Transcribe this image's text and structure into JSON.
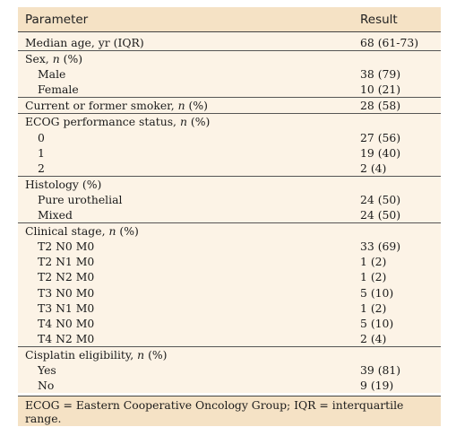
{
  "table": {
    "header": {
      "parameter": "Parameter",
      "result": "Result"
    },
    "rows": [
      {
        "label": "Median age, yr (IQR)",
        "value": "68 (61-73)"
      },
      {
        "label": "Sex, ",
        "label_italic": "n",
        "label_suffix": " (%)",
        "value": ""
      },
      {
        "label": "Male",
        "value": "38 (79)"
      },
      {
        "label": "Female",
        "value": "10 (21)"
      },
      {
        "label": "Current or former smoker, ",
        "label_italic": "n",
        "label_suffix": " (%)",
        "value": "28 (58)"
      },
      {
        "label": "ECOG performance status, ",
        "label_italic": "n",
        "label_suffix": " (%)",
        "value": ""
      },
      {
        "label": "0",
        "value": "27 (56)"
      },
      {
        "label": "1",
        "value": "19 (40)"
      },
      {
        "label": "2",
        "value": "2 (4)"
      },
      {
        "label": "Histology (%)",
        "value": ""
      },
      {
        "label": "Pure urothelial",
        "value": "24 (50)"
      },
      {
        "label": "Mixed",
        "value": "24 (50)"
      },
      {
        "label": "Clinical stage, ",
        "label_italic": "n",
        "label_suffix": " (%)",
        "value": ""
      },
      {
        "label": "T2 N0 M0",
        "value": "33 (69)"
      },
      {
        "label": "T2 N1 M0",
        "value": "1 (2)"
      },
      {
        "label": "T2 N2 M0",
        "value": "1 (2)"
      },
      {
        "label": "T3 N0 M0",
        "value": "5 (10)"
      },
      {
        "label": "T3 N1 M0",
        "value": "1 (2)"
      },
      {
        "label": "T4 N0 M0",
        "value": "5 (10)"
      },
      {
        "label": "T4 N2 M0",
        "value": "2 (4)"
      },
      {
        "label": "Cisplatin eligibility, ",
        "label_italic": "n",
        "label_suffix": " (%)",
        "value": ""
      },
      {
        "label": "Yes",
        "value": "39 (81)"
      },
      {
        "label": "No",
        "value": "9 (19)"
      }
    ],
    "footnote": "ECOG = Eastern Cooperative Oncology Group; IQR = interquartile range."
  },
  "colors": {
    "header_bg": "#f5e2c5",
    "body_bg": "#fcf3e6",
    "rule": "#444444"
  }
}
